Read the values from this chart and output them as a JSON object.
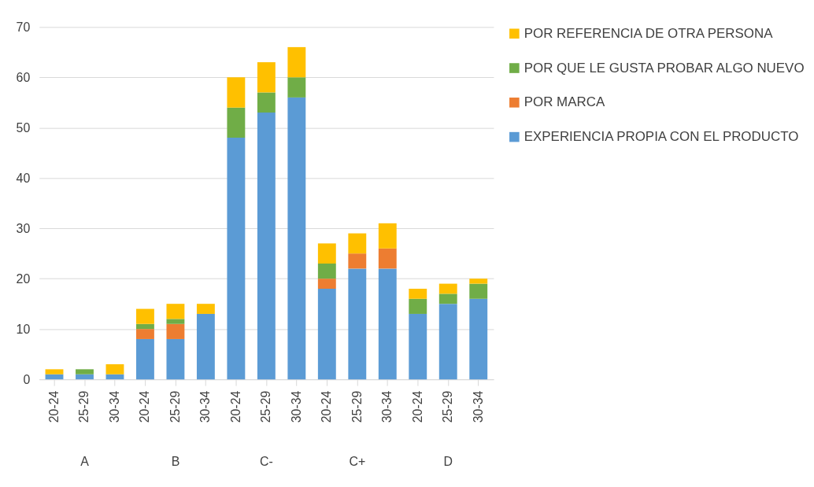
{
  "chart_data": {
    "type": "bar",
    "stacked": true,
    "categories": [
      "20-24",
      "25-29",
      "30-34",
      "20-24",
      "25-29",
      "30-34",
      "20-24",
      "25-29",
      "30-34",
      "20-24",
      "25-29",
      "30-34",
      "20-24",
      "25-29",
      "30-34"
    ],
    "annotations": [
      "A",
      "B",
      "C-",
      "C+",
      "D"
    ],
    "series": [
      {
        "name": "EXPERIENCIA PROPIA CON EL PRODUCTO",
        "color": "#5b9bd5",
        "values": [
          1,
          1,
          1,
          8,
          8,
          13,
          48,
          53,
          56,
          18,
          22,
          22,
          13,
          15,
          16
        ]
      },
      {
        "name": "POR MARCA",
        "color": "#ed7d31",
        "values": [
          null,
          null,
          null,
          2,
          3,
          null,
          null,
          null,
          null,
          2,
          3,
          4,
          null,
          null,
          null
        ]
      },
      {
        "name": "POR QUE LE GUSTA PROBAR ALGO NUEVO",
        "color": "#70ad47",
        "values": [
          null,
          1,
          null,
          1,
          1,
          null,
          6,
          4,
          4,
          3,
          null,
          null,
          3,
          2,
          3
        ]
      },
      {
        "name": "POR REFERENCIA DE OTRA PERSONA",
        "color": "#ffc000",
        "values": [
          1,
          null,
          2,
          3,
          3,
          2,
          6,
          6,
          6,
          4,
          4,
          5,
          2,
          2,
          1
        ]
      }
    ],
    "ylim": [
      0,
      70
    ],
    "yticks": [
      0,
      10,
      20,
      30,
      40,
      50,
      60,
      70
    ],
    "grid": "y",
    "legend": "right"
  }
}
